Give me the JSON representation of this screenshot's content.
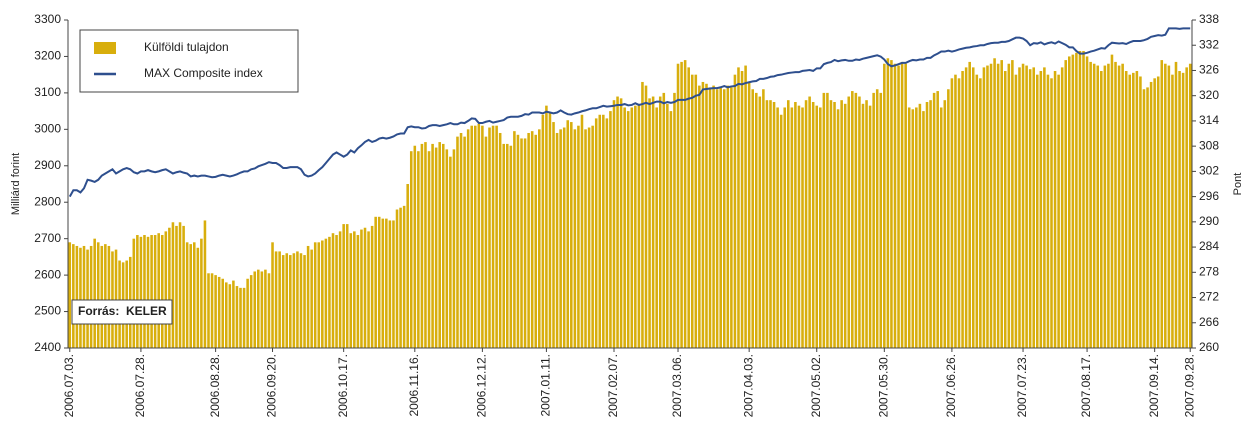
{
  "chart_data": {
    "type": "bar",
    "y_label": "Milliárd forint",
    "y2_label": "Pont",
    "annotation": "Forrás:  KELER",
    "ylim": [
      2400,
      3300
    ],
    "yticks": [
      2400,
      2500,
      2600,
      2700,
      2800,
      2900,
      3000,
      3100,
      3200,
      3300
    ],
    "y2lim": [
      260,
      338
    ],
    "y2ticks": [
      260,
      266,
      272,
      278,
      284,
      290,
      296,
      302,
      308,
      314,
      320,
      326,
      332,
      338
    ],
    "legend": "top-left",
    "categories": [
      "2006.07.03.",
      null,
      null,
      null,
      null,
      null,
      null,
      null,
      null,
      null,
      null,
      null,
      null,
      null,
      null,
      null,
      null,
      null,
      null,
      null,
      "2006.07.28.",
      null,
      null,
      null,
      null,
      null,
      null,
      null,
      null,
      null,
      null,
      null,
      null,
      null,
      null,
      null,
      null,
      null,
      null,
      null,
      null,
      "2006.08.28.",
      null,
      null,
      null,
      null,
      null,
      null,
      null,
      null,
      null,
      null,
      null,
      null,
      null,
      null,
      null,
      "2006.09.20.",
      null,
      null,
      null,
      null,
      null,
      null,
      null,
      null,
      null,
      null,
      null,
      null,
      null,
      null,
      null,
      null,
      null,
      null,
      null,
      "2006.10.17.",
      null,
      null,
      null,
      null,
      null,
      null,
      null,
      null,
      null,
      null,
      null,
      null,
      null,
      null,
      null,
      null,
      null,
      null,
      null,
      "2006.11.16.",
      null,
      null,
      null,
      null,
      null,
      null,
      null,
      null,
      null,
      null,
      null,
      null,
      null,
      null,
      null,
      null,
      null,
      null,
      "2006.12.12.",
      null,
      null,
      null,
      null,
      null,
      null,
      null,
      null,
      null,
      null,
      null,
      null,
      null,
      null,
      null,
      null,
      null,
      "2007.01.11.",
      null,
      null,
      null,
      null,
      null,
      null,
      null,
      null,
      null,
      null,
      null,
      null,
      null,
      null,
      null,
      null,
      null,
      null,
      "2007.02.07.",
      null,
      null,
      null,
      null,
      null,
      null,
      null,
      null,
      null,
      null,
      null,
      null,
      null,
      null,
      null,
      null,
      null,
      "2007.03.06.",
      null,
      null,
      null,
      null,
      null,
      null,
      null,
      null,
      null,
      null,
      null,
      null,
      null,
      null,
      null,
      null,
      null,
      null,
      null,
      "2007.04.03.",
      null,
      null,
      null,
      null,
      null,
      null,
      null,
      null,
      null,
      null,
      null,
      null,
      null,
      null,
      null,
      null,
      null,
      null,
      "2007.05.02.",
      null,
      null,
      null,
      null,
      null,
      null,
      null,
      null,
      null,
      null,
      null,
      null,
      null,
      null,
      null,
      null,
      null,
      null,
      "2007.05.30.",
      null,
      null,
      null,
      null,
      null,
      null,
      null,
      null,
      null,
      null,
      null,
      null,
      null,
      null,
      null,
      null,
      null,
      null,
      "2007.06.26.",
      null,
      null,
      null,
      null,
      null,
      null,
      null,
      null,
      null,
      null,
      null,
      null,
      null,
      null,
      null,
      null,
      null,
      null,
      null,
      "2007.07.23.",
      null,
      null,
      null,
      null,
      null,
      null,
      null,
      null,
      null,
      null,
      null,
      null,
      null,
      null,
      null,
      null,
      null,
      "2007.08.17.",
      null,
      null,
      null,
      null,
      null,
      null,
      null,
      null,
      null,
      null,
      null,
      null,
      null,
      null,
      null,
      null,
      null,
      null,
      "2007.09.14.",
      null,
      null,
      null,
      null,
      null,
      null,
      null,
      null,
      null,
      "2007.09.28."
    ],
    "series": [
      {
        "name": "Külföldi tulajdon",
        "type": "bar",
        "color": "#d8ae0c",
        "values": [
          2690,
          2685,
          2680,
          2675,
          2680,
          2670,
          2680,
          2700,
          2690,
          2680,
          2685,
          2680,
          2665,
          2670,
          2640,
          2635,
          2640,
          2650,
          2700,
          2710,
          2705,
          2710,
          2705,
          2710,
          2710,
          2715,
          2710,
          2720,
          2730,
          2745,
          2735,
          2745,
          2735,
          2690,
          2685,
          2690,
          2675,
          2700,
          2750,
          2605,
          2605,
          2600,
          2595,
          2590,
          2580,
          2575,
          2585,
          2570,
          2565,
          2565,
          2590,
          2600,
          2610,
          2615,
          2610,
          2615,
          2605,
          2690,
          2665,
          2665,
          2655,
          2660,
          2655,
          2660,
          2665,
          2660,
          2655,
          2680,
          2670,
          2690,
          2690,
          2695,
          2700,
          2705,
          2715,
          2710,
          2720,
          2740,
          2740,
          2715,
          2720,
          2710,
          2725,
          2730,
          2720,
          2735,
          2760,
          2760,
          2755,
          2755,
          2750,
          2750,
          2780,
          2785,
          2790,
          2850,
          2940,
          2955,
          2940,
          2960,
          2965,
          2940,
          2960,
          2950,
          2965,
          2960,
          2945,
          2925,
          2945,
          2980,
          2990,
          2980,
          3000,
          3010,
          3010,
          3015,
          3010,
          2980,
          3005,
          3010,
          3010,
          2990,
          2960,
          2960,
          2955,
          2995,
          2985,
          2975,
          2975,
          2990,
          2995,
          2985,
          3000,
          3040,
          3065,
          3045,
          3020,
          2990,
          3000,
          3005,
          3025,
          3020,
          3000,
          3010,
          3040,
          3000,
          3005,
          3010,
          3030,
          3040,
          3040,
          3030,
          3050,
          3080,
          3090,
          3085,
          3060,
          3050,
          3060,
          3065,
          3070,
          3130,
          3120,
          3085,
          3090,
          3060,
          3090,
          3100,
          3070,
          3050,
          3100,
          3180,
          3185,
          3190,
          3170,
          3150,
          3150,
          3120,
          3130,
          3125,
          3115,
          3120,
          3110,
          3115,
          3110,
          3120,
          3115,
          3150,
          3170,
          3160,
          3175,
          3130,
          3110,
          3100,
          3090,
          3110,
          3080,
          3080,
          3075,
          3060,
          3040,
          3060,
          3080,
          3060,
          3075,
          3065,
          3060,
          3080,
          3090,
          3075,
          3065,
          3060,
          3100,
          3100,
          3080,
          3075,
          3055,
          3080,
          3070,
          3090,
          3105,
          3100,
          3090,
          3070,
          3080,
          3065,
          3100,
          3110,
          3100,
          3180,
          3195,
          3190,
          3180,
          3175,
          3185,
          3180,
          3060,
          3055,
          3060,
          3070,
          3050,
          3075,
          3080,
          3100,
          3105,
          3060,
          3080,
          3110,
          3140,
          3150,
          3140,
          3160,
          3170,
          3185,
          3170,
          3150,
          3140,
          3170,
          3175,
          3180,
          3195,
          3180,
          3190,
          3160,
          3180,
          3190,
          3150,
          3170,
          3180,
          3175,
          3165,
          3170,
          3150,
          3160,
          3170,
          3150,
          3140,
          3160,
          3150,
          3170,
          3190,
          3200,
          3205,
          3210,
          3215,
          3215,
          3200,
          3185,
          3180,
          3175,
          3160,
          3175,
          3180,
          3205,
          3185,
          3175,
          3180,
          3160,
          3150,
          3155,
          3160,
          3145,
          3110,
          3115,
          3130,
          3140,
          3145,
          3190,
          3180,
          3175,
          3150,
          3185,
          3160,
          3155,
          3170,
          3180
        ]
      },
      {
        "name": "MAX Composite index",
        "type": "line",
        "axis": "y2",
        "color": "#2e4f8e",
        "values": [
          296,
          297.5,
          297.5,
          297,
          298,
          300,
          299.8,
          299.5,
          300,
          301,
          301.5,
          302,
          302.5,
          301.5,
          302,
          302.5,
          302.8,
          302.5,
          301.8,
          301.5,
          302,
          302,
          302.3,
          302,
          301.8,
          302,
          302.3,
          302.5,
          302,
          301.5,
          301.8,
          302,
          301.7,
          301.5,
          300.8,
          301,
          300.8,
          301,
          301,
          300.8,
          300.6,
          300.7,
          301,
          301.2,
          301,
          300.8,
          301,
          301.3,
          301.7,
          302,
          302,
          302.5,
          302.7,
          303.2,
          303.5,
          303.8,
          304.2,
          304,
          304,
          303.5,
          302.8,
          302.8,
          303,
          303,
          303,
          302.5,
          301.2,
          300.8,
          301,
          301.5,
          302.3,
          303,
          304,
          305,
          306,
          306.5,
          306,
          305.5,
          306,
          307,
          306.5,
          307.5,
          308.2,
          309,
          309.5,
          309,
          309.3,
          309.8,
          310,
          309.8,
          310,
          310.3,
          310.8,
          311,
          311,
          312.5,
          312.7,
          312.5,
          312.5,
          312.2,
          312.3,
          312.8,
          313,
          313,
          312.8,
          313,
          313.2,
          313.5,
          313.2,
          313.2,
          313.6,
          313.5,
          314,
          314.6,
          314.5,
          313.5,
          313.5,
          313.8,
          314,
          313.6,
          313.8,
          314,
          314.2,
          314.8,
          315,
          315,
          315,
          315.2,
          315.6,
          315.5,
          316,
          316,
          316,
          315.8,
          316.2,
          316,
          315.8,
          316,
          316.5,
          316,
          315.6,
          315.5,
          315.8,
          316,
          316.3,
          316.5,
          316.8,
          317,
          317,
          317.3,
          317.6,
          317.4,
          317.5,
          317.6,
          317.8,
          317.8,
          318,
          317.7,
          317.8,
          318.2,
          317.8,
          318,
          318.3,
          318,
          318.3,
          318.6,
          318.6,
          318.2,
          318.5,
          318.3,
          318.5,
          319,
          319,
          319,
          319.3,
          319.5,
          320,
          320.2,
          321.5,
          321.6,
          321.7,
          321.8,
          321.8,
          322,
          322.3,
          322,
          322.2,
          322.3,
          322.8,
          322.7,
          323,
          323.2,
          323.4,
          323.5,
          324,
          324,
          324.2,
          324.5,
          324.6,
          324.9,
          325,
          325.2,
          325.4,
          325.5,
          325.6,
          325.6,
          325.9,
          326,
          326.1,
          325.9,
          326.5,
          326.5,
          327.5,
          327.8,
          328,
          328.5,
          328.2,
          328.4,
          328.5,
          328.3,
          328.3,
          328.6,
          328.5,
          328.8,
          329,
          329.2,
          329.4,
          329.6,
          329.3,
          328.6,
          327.5,
          327,
          327.2,
          327.5,
          327.8,
          327.8,
          328.2,
          328.5,
          328.4,
          328.6,
          328.6,
          329,
          329,
          329.6,
          330,
          330.5,
          330.5,
          330.7,
          330.5,
          330.7,
          331,
          331.2,
          331.4,
          331.5,
          331.7,
          331.8,
          332,
          332,
          332.3,
          332.5,
          332.6,
          332.6,
          332.8,
          332.8,
          333,
          333.4,
          333.8,
          333.8,
          333.6,
          333,
          332,
          332.5,
          332.4,
          332.7,
          332.2,
          332.5,
          332.7,
          332.4,
          332.9,
          332.5,
          332.1,
          331.5,
          331.5,
          330.6,
          330,
          330,
          330.2,
          330.5,
          330.7,
          331,
          331.3,
          331.2,
          332,
          332.6,
          332.5,
          332.4,
          332.5,
          332.3,
          332.7,
          333,
          333,
          333,
          333.2,
          333.5,
          334,
          334.2,
          334.4,
          334.3,
          334.5,
          336,
          336,
          336,
          335.9,
          336,
          336,
          336
        ]
      }
    ]
  }
}
